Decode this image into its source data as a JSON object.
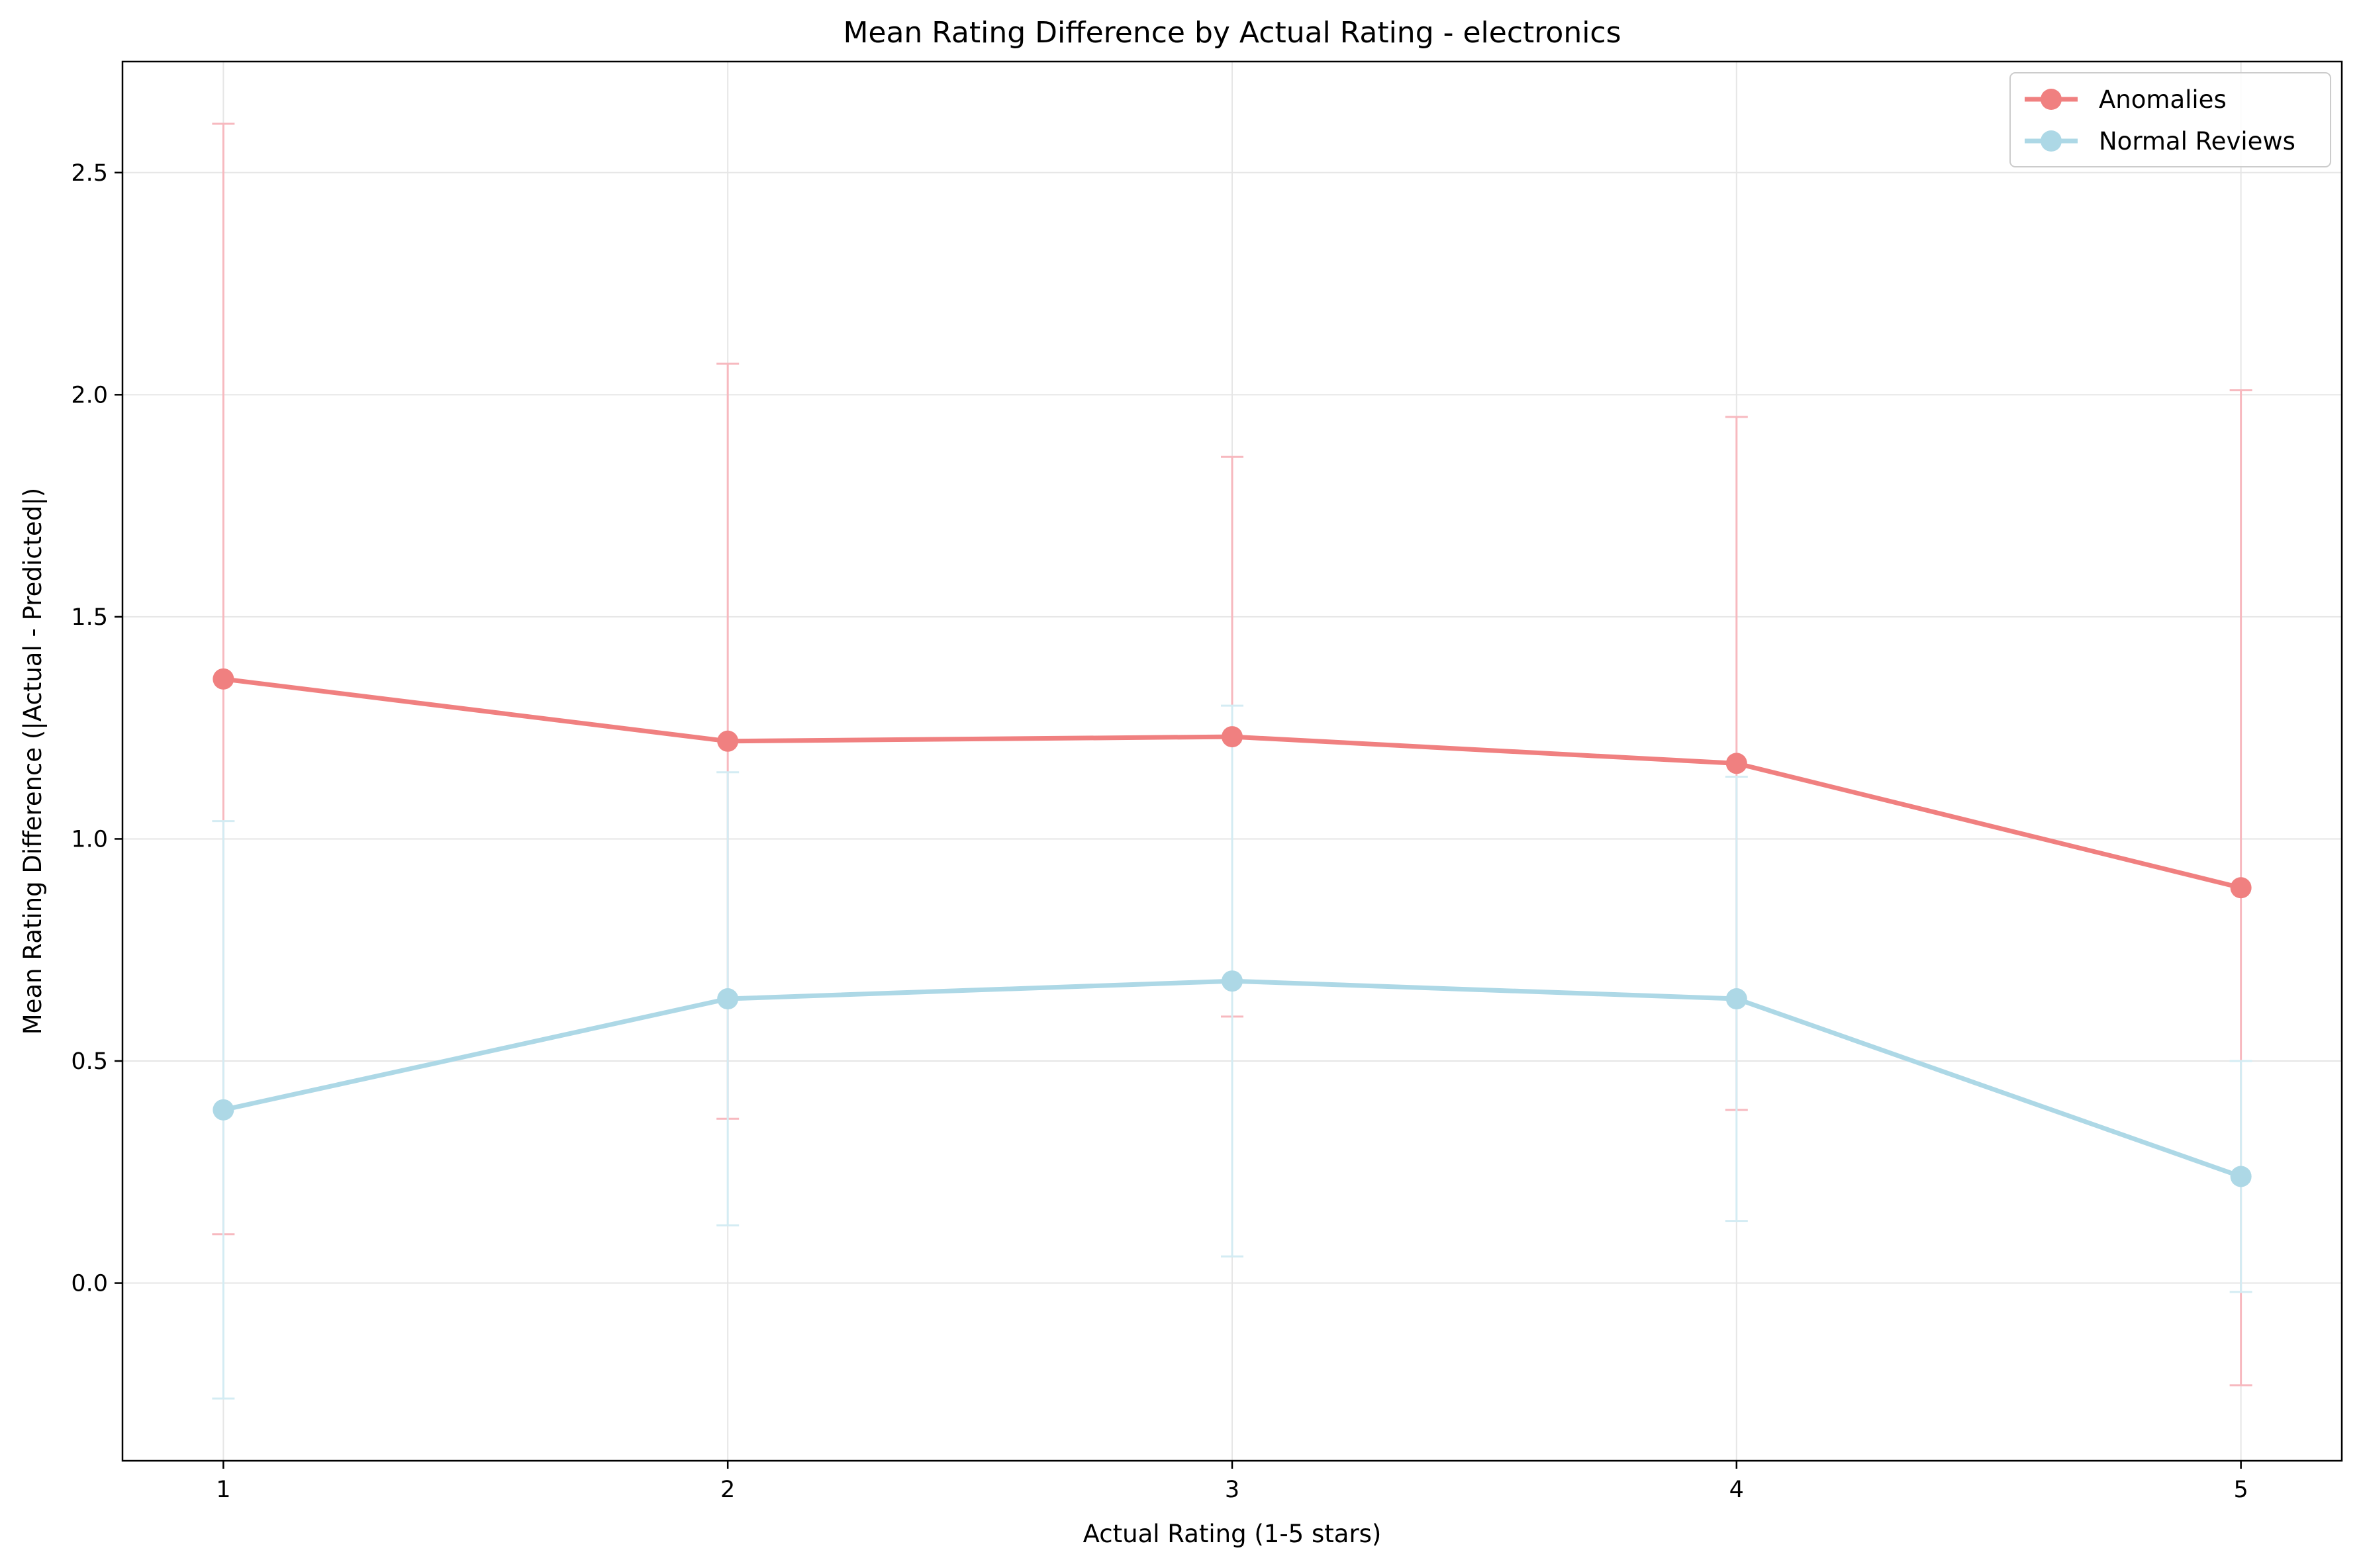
{
  "chart_data": {
    "type": "line",
    "title": "Mean Rating Difference by Actual Rating - electronics",
    "xlabel": "Actual Rating (1-5 stars)",
    "ylabel": "Mean Rating Difference (|Actual - Predicted|)",
    "x": [
      1,
      2,
      3,
      4,
      5
    ],
    "xticks": [
      "1",
      "2",
      "3",
      "4",
      "5"
    ],
    "xlim": [
      0.8,
      5.2
    ],
    "ylim": [
      -0.4,
      2.75
    ],
    "yticks": [
      "0.0",
      "0.5",
      "1.0",
      "1.5",
      "2.0",
      "2.5"
    ],
    "grid": true,
    "legend_position": "top-right",
    "series": [
      {
        "name": "Anomalies",
        "color": "#f08080",
        "errorbar_color": "#f7b9bf",
        "values": [
          1.36,
          1.22,
          1.23,
          1.17,
          0.89
        ],
        "error": [
          1.25,
          0.85,
          0.63,
          0.78,
          1.12
        ]
      },
      {
        "name": "Normal Reviews",
        "color": "#add8e6",
        "errorbar_color": "#d4ecf3",
        "values": [
          0.39,
          0.64,
          0.68,
          0.64,
          0.24
        ],
        "error": [
          0.65,
          0.51,
          0.62,
          0.5,
          0.26
        ]
      }
    ]
  }
}
